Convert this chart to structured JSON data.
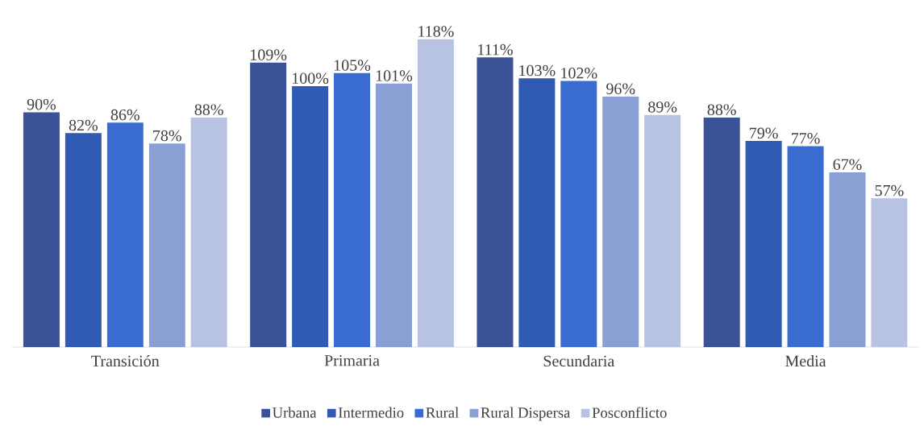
{
  "chart_data": {
    "type": "bar",
    "categories": [
      "Transición",
      "Primaria",
      "Secundaria",
      "Media"
    ],
    "legend": "bottom",
    "series": [
      {
        "name": "Urbana",
        "color": "#3a5396",
        "values": [
          90,
          109,
          111,
          88
        ],
        "value_labels": [
          "90%",
          "109%",
          "111%",
          "88%"
        ]
      },
      {
        "name": "Intermedio",
        "color": "#2f5bb5",
        "values": [
          82,
          100,
          103,
          79
        ],
        "value_labels": [
          "82%",
          "100%",
          "103%",
          "79%"
        ]
      },
      {
        "name": "Rural",
        "color": "#3a6bd0",
        "values": [
          86,
          105,
          102,
          77
        ],
        "value_labels": [
          "86%",
          "105%",
          "102%",
          "77%"
        ]
      },
      {
        "name": "Rural Dispersa",
        "color": "#8a9fd4",
        "values": [
          78,
          101,
          96,
          67
        ],
        "value_labels": [
          "78%",
          "101%",
          "96%",
          "67%"
        ]
      },
      {
        "name": "Posconflicto",
        "color": "#b8c2e2",
        "values": [
          88,
          118,
          89,
          57
        ],
        "value_labels": [
          "88%",
          "118%",
          "89%",
          "57%"
        ]
      }
    ]
  }
}
